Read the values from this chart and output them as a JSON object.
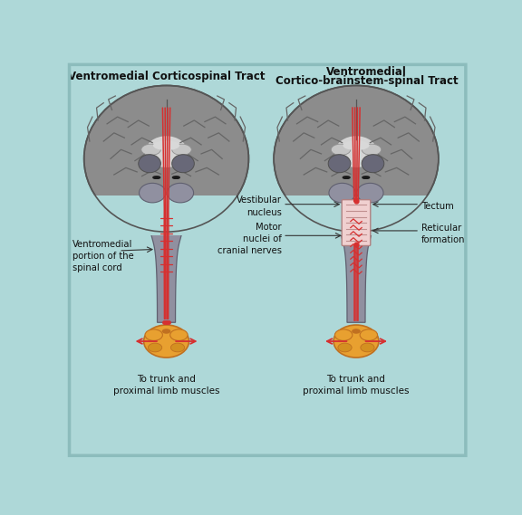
{
  "bg_color": "#aed8d8",
  "brain_gray": "#8c8c8c",
  "brain_dark": "#757575",
  "brain_light": "#a0a0a0",
  "sulci_color": "#666666",
  "ventricle_color": "#c8c8c8",
  "white_matter": "#d5d5d5",
  "stem_color": "#9090a0",
  "stem_dark": "#808090",
  "red_color": "#d63030",
  "box_fill": "#f0d0d0",
  "box_edge": "#b08080",
  "spinal_fill": "#e8a030",
  "spinal_edge": "#c07020",
  "thal_color": "#686878",
  "black_mark": "#1a1a1a",
  "title_left": "Ventromedial Corticospinal Tract",
  "title_right1": "Ventromedial",
  "title_right2": "Cortico-brainstem-spinal Tract",
  "lbl_ventromedial": "Ventromedial\nportion of the\nspinal cord",
  "lbl_trunk": "To trunk and\nproximal limb muscles",
  "lbl_vestibular": "Vestibular\nnucleus",
  "lbl_motor": "Motor\nnuclei of\ncranial nerves",
  "lbl_tectum": "Tectum",
  "lbl_reticular": "Reticular\nformation",
  "lc": 143,
  "rc": 415
}
